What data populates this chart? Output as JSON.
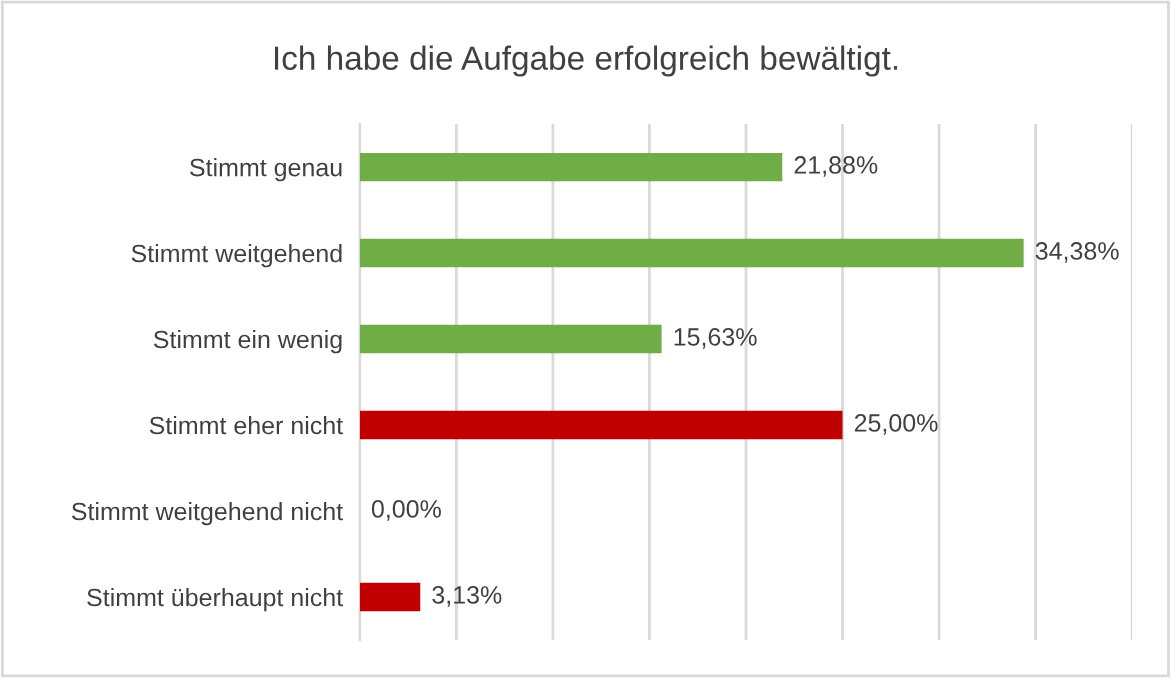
{
  "chart_data": {
    "type": "bar",
    "orientation": "horizontal",
    "title": "Ich habe die Aufgabe erfolgreich bewältigt.",
    "categories": [
      "Stimmt genau",
      "Stimmt weitgehend",
      "Stimmt ein wenig",
      "Stimmt eher nicht",
      "Stimmt weitgehend nicht",
      "Stimmt überhaupt nicht"
    ],
    "values": [
      21.88,
      34.38,
      15.63,
      25.0,
      0.0,
      3.13
    ],
    "colors": [
      "#70ad47",
      "#70ad47",
      "#70ad47",
      "#c00000",
      "#c00000",
      "#c00000"
    ],
    "value_labels": [
      "21,88%",
      "34,38%",
      "15,63%",
      "25,00%",
      "0,00%",
      "3,13%"
    ],
    "xlim": [
      0,
      40
    ],
    "xticks": [
      {
        "value": 0,
        "label": null
      },
      {
        "value": 5,
        "label": null
      },
      {
        "value": 10,
        "label": null
      },
      {
        "value": 15,
        "label": null
      },
      {
        "value": 20,
        "label": null
      },
      {
        "value": 25,
        "label": null
      },
      {
        "value": 30,
        "label": null
      },
      {
        "value": 35,
        "label": null
      },
      {
        "value": 40,
        "label": null
      }
    ],
    "grid": "x",
    "tick_labels": "y",
    "legend": false
  }
}
